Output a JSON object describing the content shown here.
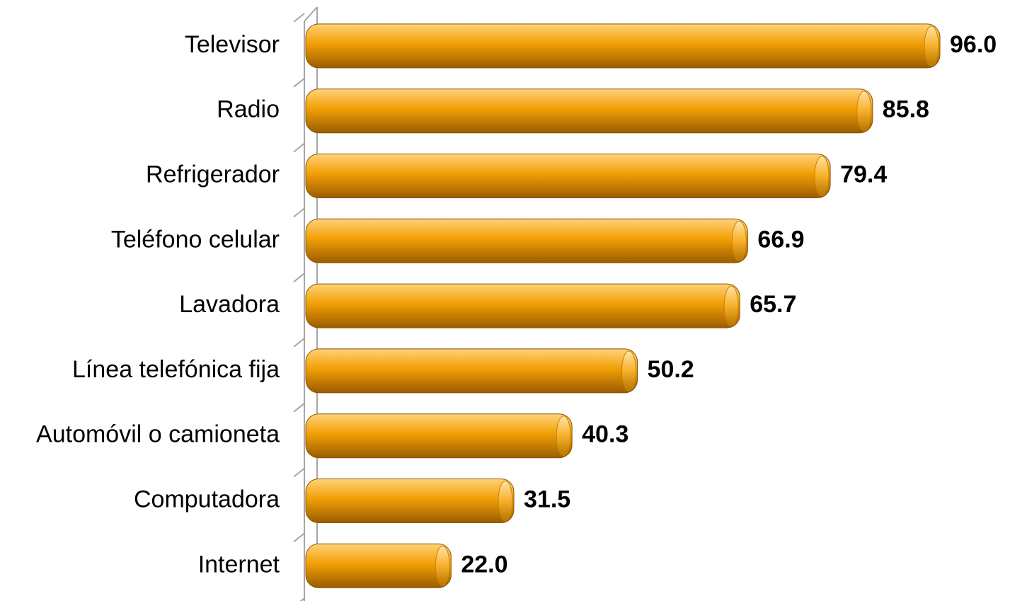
{
  "chart_data": {
    "type": "bar",
    "orientation": "horizontal",
    "categories": [
      "Televisor",
      "Radio",
      "Refrigerador",
      "Teléfono celular",
      "Lavadora",
      "Línea telefónica fija",
      "Automóvil o camioneta",
      "Computadora",
      "Internet"
    ],
    "values": [
      96.0,
      85.8,
      79.4,
      66.9,
      65.7,
      50.2,
      40.3,
      31.5,
      22.0
    ],
    "value_labels": [
      "96.0",
      "85.8",
      "79.4",
      "66.9",
      "65.7",
      "50.2",
      "40.3",
      "31.5",
      "22.0"
    ],
    "color": "#f29f05"
  }
}
